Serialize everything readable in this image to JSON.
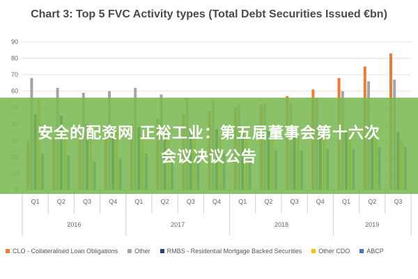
{
  "overlay": {
    "line1": "安全的配资网 正裕工业：第五届董事会第十六次",
    "line2": "会议决议公告"
  },
  "chart_data": {
    "type": "bar",
    "title": "Chart 3: Top 5 FVC Activity types (Total Debt Securities Issued €bn)",
    "xlabel": "",
    "ylabel": "",
    "ylim": [
      0,
      90
    ],
    "yticks": [
      0,
      10,
      20,
      30,
      40,
      50,
      60,
      70,
      80,
      90
    ],
    "grid": true,
    "legend_position": "bottom",
    "categories": [
      "Q1",
      "Q2",
      "Q3",
      "Q4",
      "Q1",
      "Q2",
      "Q3",
      "Q4",
      "Q1",
      "Q2",
      "Q3",
      "Q4",
      "Q1",
      "Q2",
      "Q3"
    ],
    "groups": [
      {
        "label": "2016",
        "count": 4
      },
      {
        "label": "2017",
        "count": 4
      },
      {
        "label": "2018",
        "count": 4
      },
      {
        "label": "2019",
        "count": 3
      }
    ],
    "series": [
      {
        "name": "CLO - Collateralised Loan Obligations",
        "color": "#ED7D31",
        "values": [
          30,
          32,
          35,
          37,
          40,
          43,
          46,
          48,
          50,
          52,
          57,
          61,
          68,
          75,
          83
        ]
      },
      {
        "name": "Other",
        "color": "#A5A5A5",
        "values": [
          68,
          62,
          59,
          60,
          62,
          58,
          56,
          54,
          52,
          53,
          53,
          56,
          60,
          66,
          67
        ]
      },
      {
        "name": "RMBS - Residential Mortgage Backed Securities",
        "color": "#264478",
        "values": [
          46,
          45,
          40,
          39,
          38,
          37,
          36,
          37,
          36,
          36,
          35,
          35,
          36,
          36,
          35
        ]
      },
      {
        "name": "Other CDO",
        "color": "#FFC000",
        "values": [
          55,
          38,
          37,
          36,
          34,
          32,
          31,
          32,
          33,
          34,
          34,
          35,
          34,
          33,
          30
        ]
      },
      {
        "name": "ABCP",
        "color": "#4472C4",
        "values": [
          22,
          21,
          17,
          19,
          22,
          22,
          21,
          22,
          23,
          24,
          24,
          25,
          25,
          26,
          26
        ]
      }
    ]
  }
}
